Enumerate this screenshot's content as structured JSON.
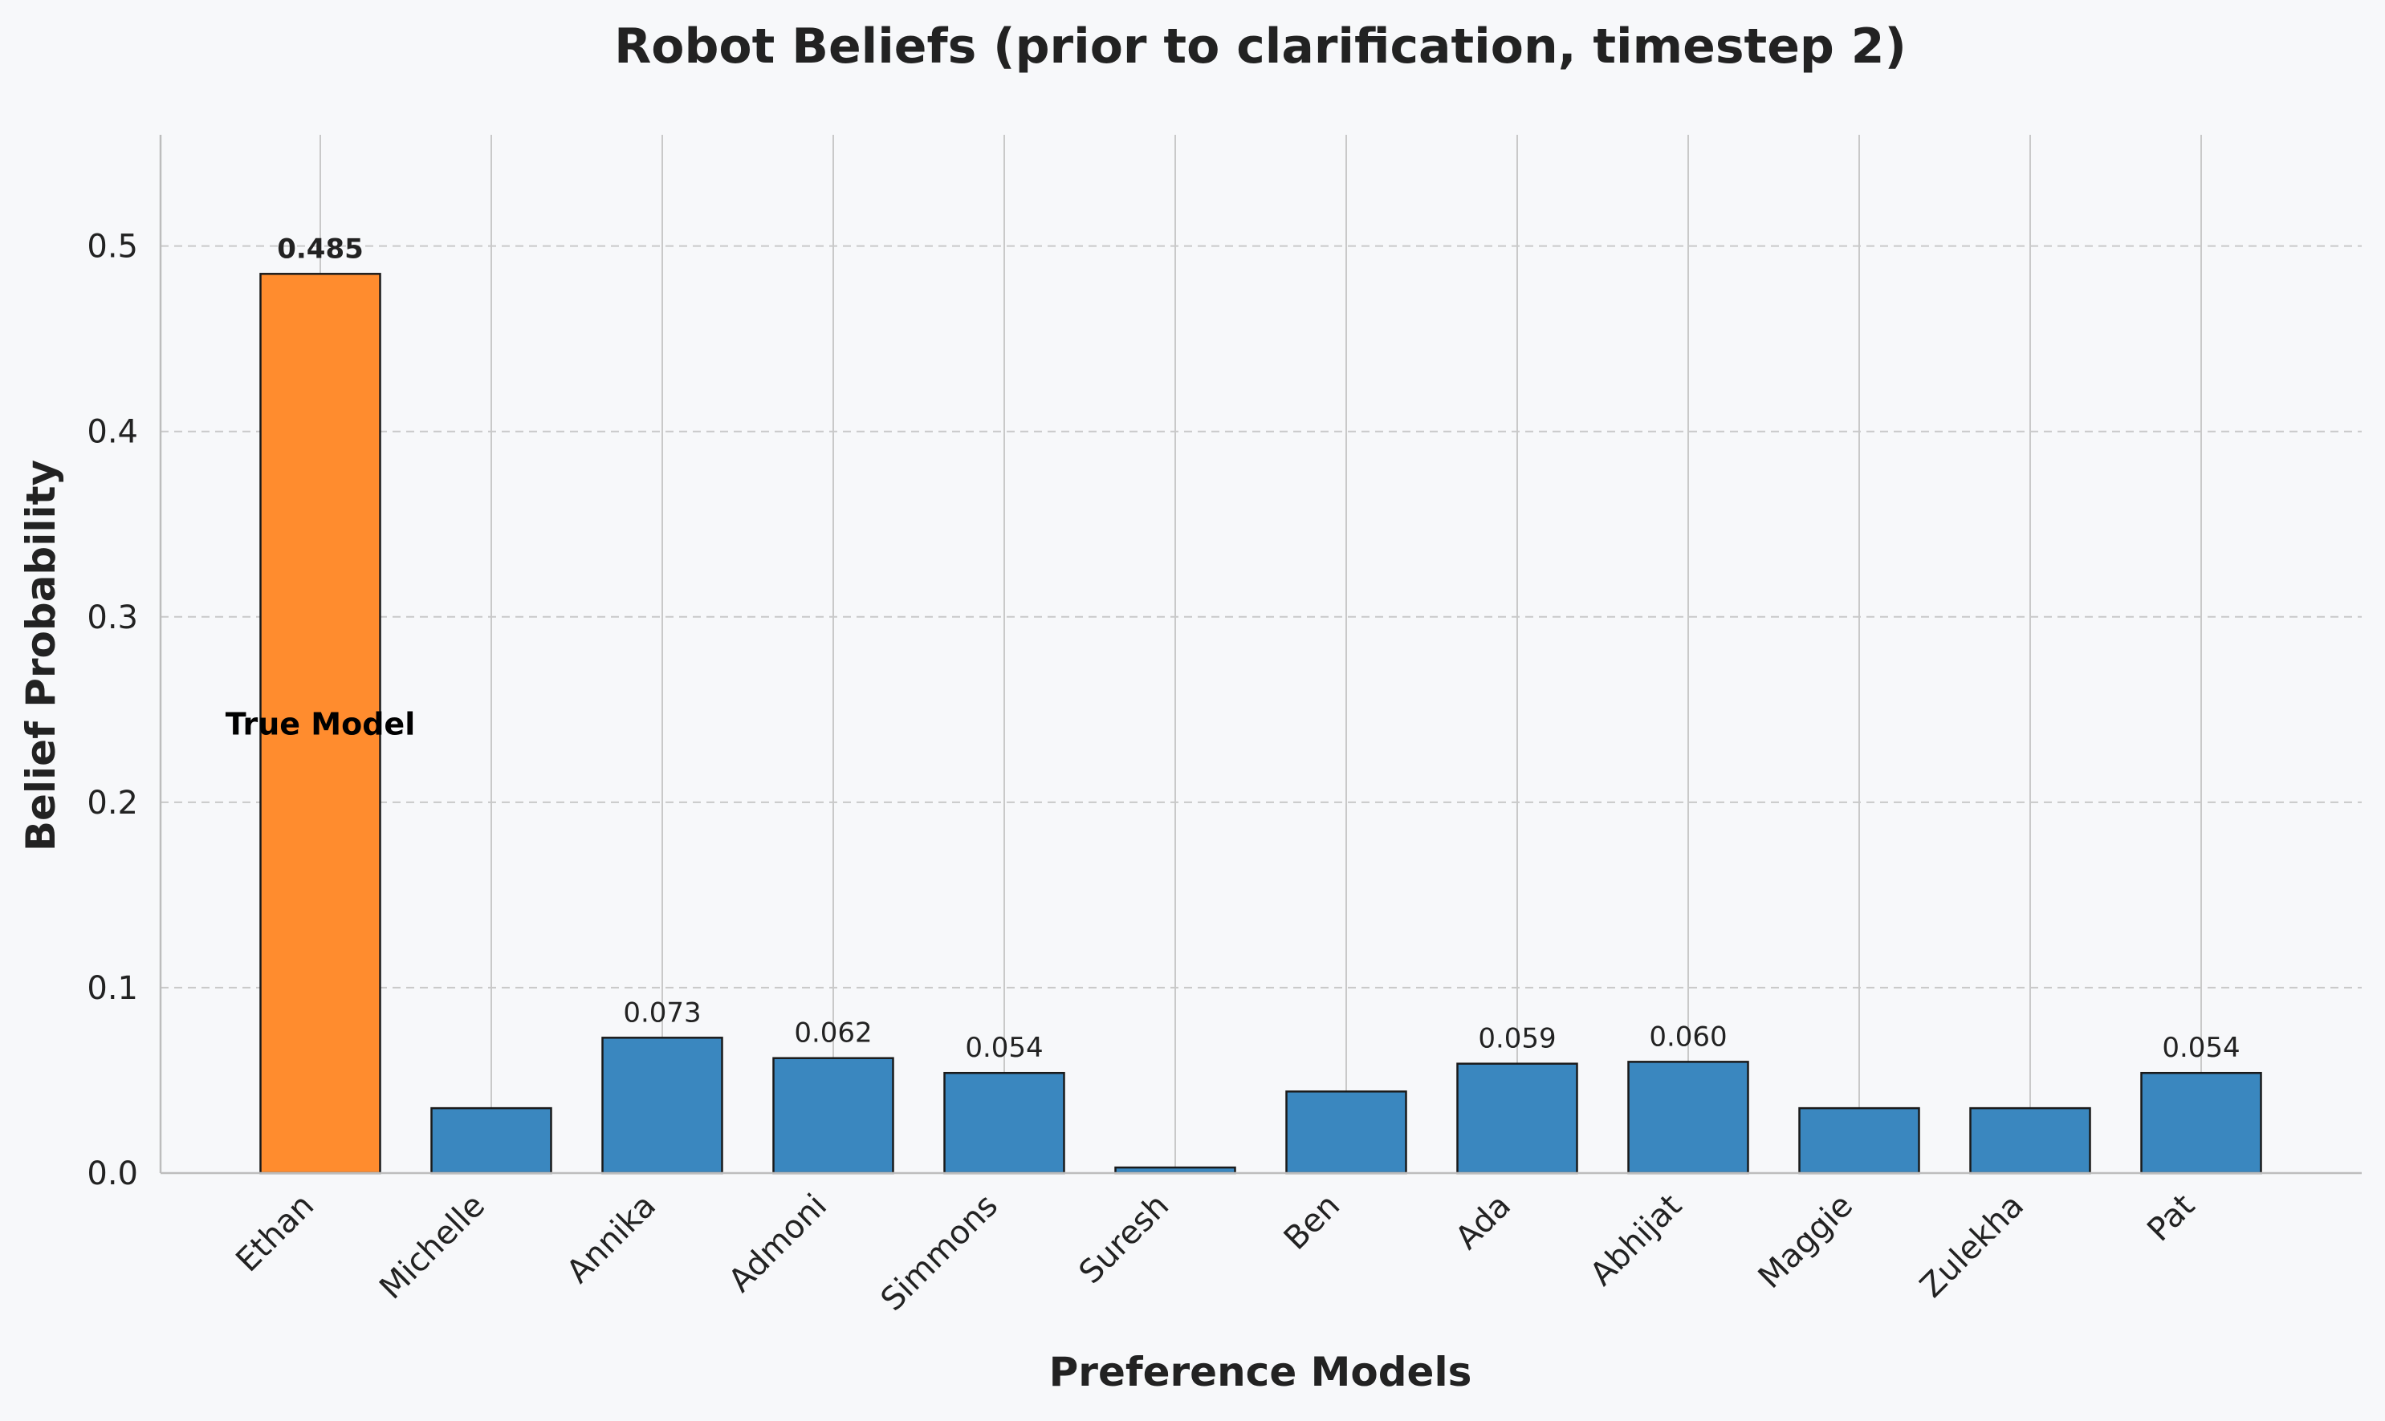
{
  "chart_data": {
    "type": "bar",
    "title": "Robot Beliefs (prior to clarification, timestep 2)",
    "xlabel": "Preference Models",
    "ylabel": "Belief Probability",
    "ylim": [
      0,
      0.56
    ],
    "yticks": [
      0.0,
      0.1,
      0.2,
      0.3,
      0.4,
      0.5
    ],
    "ytick_labels": [
      "0.0",
      "0.1",
      "0.2",
      "0.3",
      "0.4",
      "0.5"
    ],
    "grid": "y dashed, x solid",
    "categories": [
      "Ethan",
      "Michelle",
      "Annika",
      "Admoni",
      "Simmons",
      "Suresh",
      "Ben",
      "Ada",
      "Abhijat",
      "Maggie",
      "Zulekha",
      "Pat"
    ],
    "values": [
      0.485,
      0.035,
      0.073,
      0.062,
      0.054,
      0.003,
      0.044,
      0.059,
      0.06,
      0.035,
      0.035,
      0.054
    ],
    "value_labels": [
      "0.485",
      "",
      "0.073",
      "0.062",
      "0.054",
      "",
      "",
      "0.059",
      "0.060",
      "",
      "",
      "0.054"
    ],
    "highlight_index": 0,
    "annotation": "True Model",
    "colors": {
      "default": "#3a87bf",
      "highlight": "#ff8c2e",
      "edge": "#1a1a1a",
      "background": "#f7f8fa",
      "grid": "#c9c9c9"
    }
  }
}
